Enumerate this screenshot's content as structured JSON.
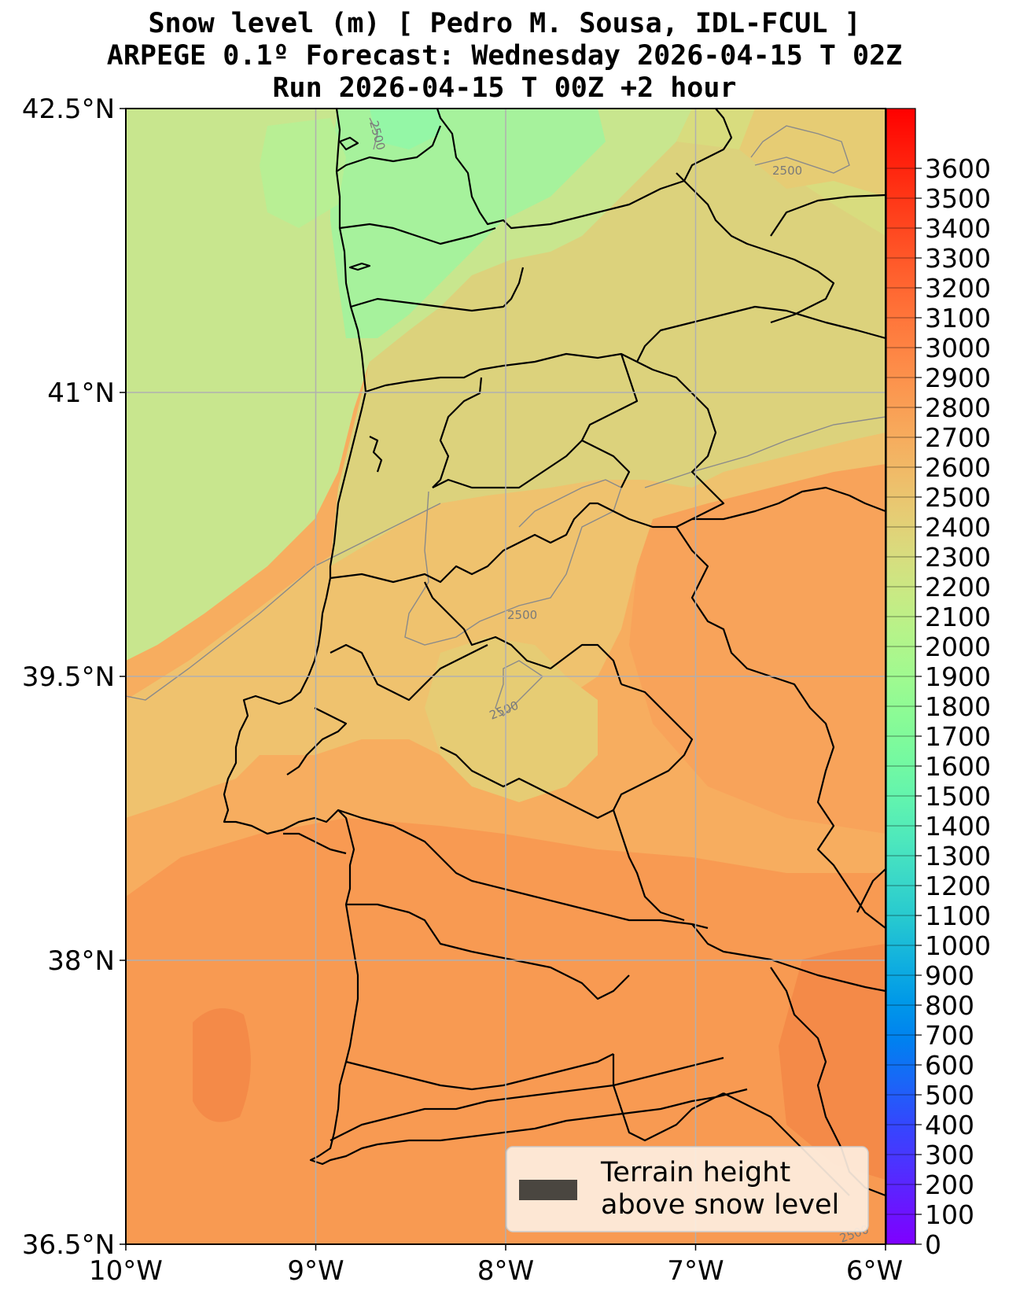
{
  "header": {
    "line1": "Snow level (m) [ Pedro M. Sousa, IDL-FCUL ]",
    "line2": "ARPEGE 0.1º Forecast: Wednesday 2026-04-15 T 02Z",
    "line3": "Run 2026-04-15 T 00Z +2 hour"
  },
  "map": {
    "lon_range": [
      -10,
      -6
    ],
    "lat_range": [
      36.5,
      42.5
    ],
    "x_ticks": [
      {
        "value": -10,
        "label": "10°W"
      },
      {
        "value": -9,
        "label": "9°W"
      },
      {
        "value": -8,
        "label": "8°W"
      },
      {
        "value": -7,
        "label": "7°W"
      },
      {
        "value": -6,
        "label": "6°W"
      }
    ],
    "y_ticks": [
      {
        "value": 42.5,
        "label": "42.5°N"
      },
      {
        "value": 41,
        "label": "41°N"
      },
      {
        "value": 39.5,
        "label": "39.5°N"
      },
      {
        "value": 38,
        "label": "38°N"
      },
      {
        "value": 36.5,
        "label": "36.5°N"
      }
    ],
    "grid": true,
    "contour_labels": [
      "2500",
      "2500",
      "2500",
      "2500",
      "2500"
    ]
  },
  "colorbar": {
    "min": 0,
    "max": 3800,
    "labels": [
      "0",
      "100",
      "200",
      "300",
      "400",
      "500",
      "600",
      "700",
      "800",
      "900",
      "1000",
      "1100",
      "1200",
      "1300",
      "1400",
      "1500",
      "1600",
      "1700",
      "1800",
      "1900",
      "2000",
      "2100",
      "2200",
      "2300",
      "2400",
      "2500",
      "2600",
      "2700",
      "2800",
      "2900",
      "3000",
      "3100",
      "3200",
      "3300",
      "3400",
      "3500",
      "3600"
    ],
    "colors": [
      "#7f00ff",
      "#6619ff",
      "#4c33ff",
      "#3348fd",
      "#1a66f7",
      "#0080f0",
      "#0099e8",
      "#12b1de",
      "#26c8d0",
      "#3ad8c8",
      "#4ee8bc",
      "#62f4ae",
      "#76f9a0",
      "#8afb96",
      "#a0fa90",
      "#b4f48a",
      "#c8ea84",
      "#d8dc7e",
      "#e6cc74",
      "#f0bb68",
      "#f7aa5c",
      "#fb9850",
      "#fe8544",
      "#ff7238",
      "#ff5e2c",
      "#ff4820",
      "#ff3214",
      "#ff1a0a",
      "#ff0000"
    ]
  },
  "legend": {
    "line1": "Terrain height",
    "line2": "above snow level",
    "patch_color": "#4a4640"
  }
}
